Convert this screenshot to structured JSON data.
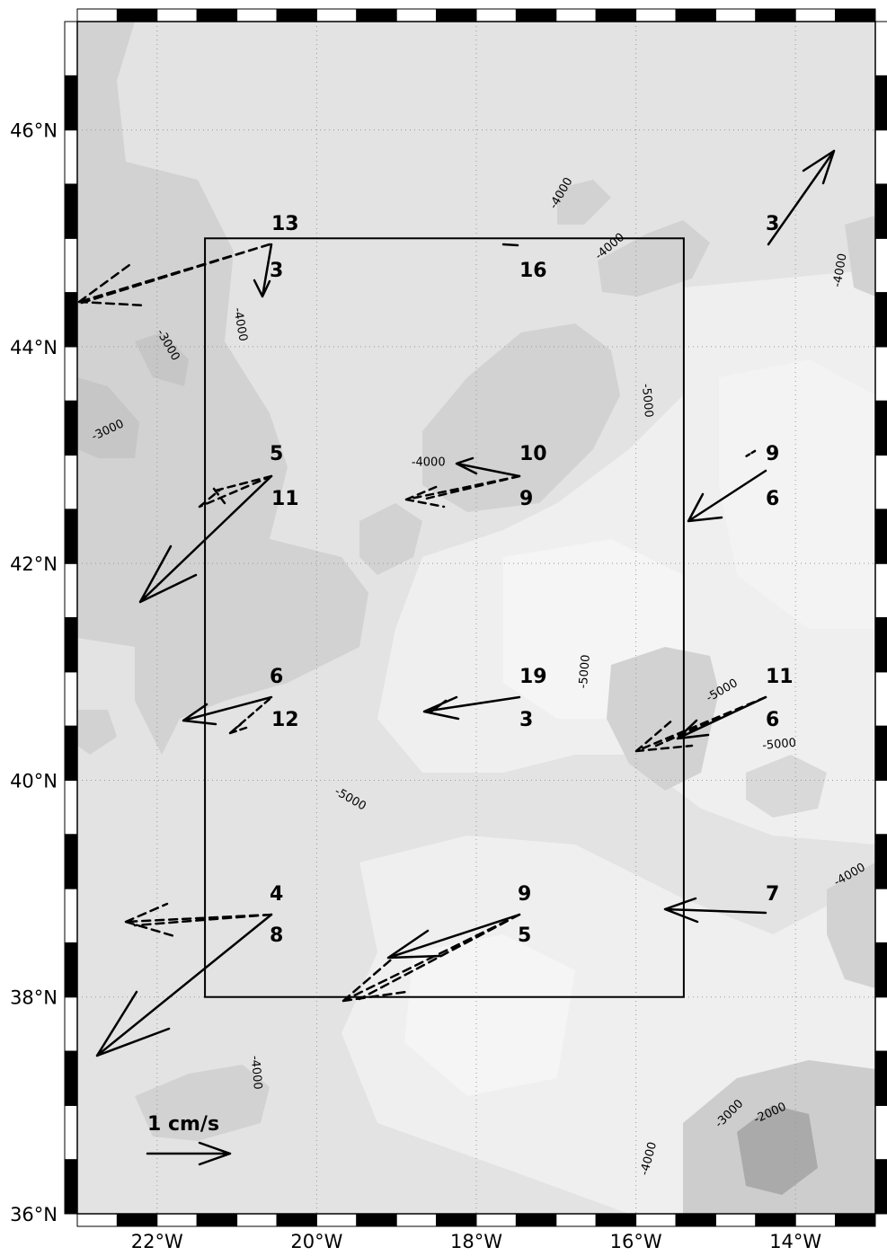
{
  "map": {
    "lon_range": [
      -23,
      -13
    ],
    "lat_range": [
      36,
      47
    ],
    "lon_ticks": [
      {
        "value": -22,
        "label": "22°W"
      },
      {
        "value": -20,
        "label": "20°W"
      },
      {
        "value": -18,
        "label": "18°W"
      },
      {
        "value": -16,
        "label": "16°W"
      },
      {
        "value": -14,
        "label": "14°W"
      }
    ],
    "lat_ticks": [
      {
        "value": 36,
        "label": "36°N"
      },
      {
        "value": 38,
        "label": "38°N"
      },
      {
        "value": 40,
        "label": "40°N"
      },
      {
        "value": 42,
        "label": "42°N"
      },
      {
        "value": 44,
        "label": "44°N"
      },
      {
        "value": 46,
        "label": "46°N"
      }
    ],
    "box": {
      "lon_min": -21.4,
      "lon_max": -15.4,
      "lat_min": 38,
      "lat_max": 45
    },
    "scale": {
      "label": "1 cm/s"
    }
  },
  "stations": [
    {
      "id": "s1",
      "lon": -20.55,
      "lat": 45.0,
      "upper": "13",
      "lower": "3"
    },
    {
      "id": "s2",
      "lon": -17.55,
      "lat": 45.0,
      "upper": "",
      "lower": "16"
    },
    {
      "id": "s3",
      "lon": -14.55,
      "lat": 45.0,
      "upper": "",
      "lower": "3"
    },
    {
      "id": "s4",
      "lon": -20.55,
      "lat": 43.0,
      "upper": "5",
      "lower": "11"
    },
    {
      "id": "s5",
      "lon": -17.55,
      "lat": 43.0,
      "upper": "10",
      "lower": "9"
    },
    {
      "id": "s6",
      "lon": -14.55,
      "lat": 43.0,
      "upper": "9",
      "lower": "6"
    },
    {
      "id": "s7",
      "lon": -20.55,
      "lat": 41.0,
      "upper": "6",
      "lower": "12"
    },
    {
      "id": "s8",
      "lon": -17.55,
      "lat": 41.0,
      "upper": "19",
      "lower": "3"
    },
    {
      "id": "s9",
      "lon": -14.55,
      "lat": 41.0,
      "upper": "11",
      "lower": "6"
    },
    {
      "id": "s10",
      "lon": -20.55,
      "lat": 39.0,
      "upper": "4",
      "lower": "8"
    },
    {
      "id": "s11",
      "lon": -17.55,
      "lat": 39.0,
      "upper": "9",
      "lower": "5"
    },
    {
      "id": "s12",
      "lon": -14.55,
      "lat": 39.0,
      "upper": "",
      "lower": "7"
    }
  ],
  "contour_labels": [
    {
      "text": "-4000",
      "lon": -16.9,
      "lat": 45.4,
      "rot": -60
    },
    {
      "text": "-4000",
      "lon": -16.3,
      "lat": 44.9,
      "rot": -40
    },
    {
      "text": "-4000",
      "lon": -13.4,
      "lat": 44.7,
      "rot": -80
    },
    {
      "text": "-3000",
      "lon": -21.9,
      "lat": 44.0,
      "rot": 60
    },
    {
      "text": "-4000",
      "lon": -21.0,
      "lat": 44.2,
      "rot": 80
    },
    {
      "text": "-3000",
      "lon": -22.6,
      "lat": 43.2,
      "rot": -25
    },
    {
      "text": "-5000",
      "lon": -15.9,
      "lat": 43.5,
      "rot": 85
    },
    {
      "text": "-4000",
      "lon": -18.6,
      "lat": 42.9,
      "rot": 0
    },
    {
      "text": "-5000",
      "lon": -16.6,
      "lat": 41.0,
      "rot": -85
    },
    {
      "text": "-5000",
      "lon": -14.9,
      "lat": 40.8,
      "rot": -30
    },
    {
      "text": "-5000",
      "lon": -14.2,
      "lat": 40.3,
      "rot": -5
    },
    {
      "text": "-5000",
      "lon": -19.6,
      "lat": 39.8,
      "rot": 30
    },
    {
      "text": "-4000",
      "lon": -13.3,
      "lat": 39.1,
      "rot": -30
    },
    {
      "text": "-4000",
      "lon": -20.8,
      "lat": 37.3,
      "rot": 85
    },
    {
      "text": "-3000",
      "lon": -14.8,
      "lat": 36.9,
      "rot": -45
    },
    {
      "text": "-2000",
      "lon": -14.3,
      "lat": 36.9,
      "rot": -25
    },
    {
      "text": "-4000",
      "lon": -15.8,
      "lat": 36.5,
      "rot": -75
    }
  ]
}
